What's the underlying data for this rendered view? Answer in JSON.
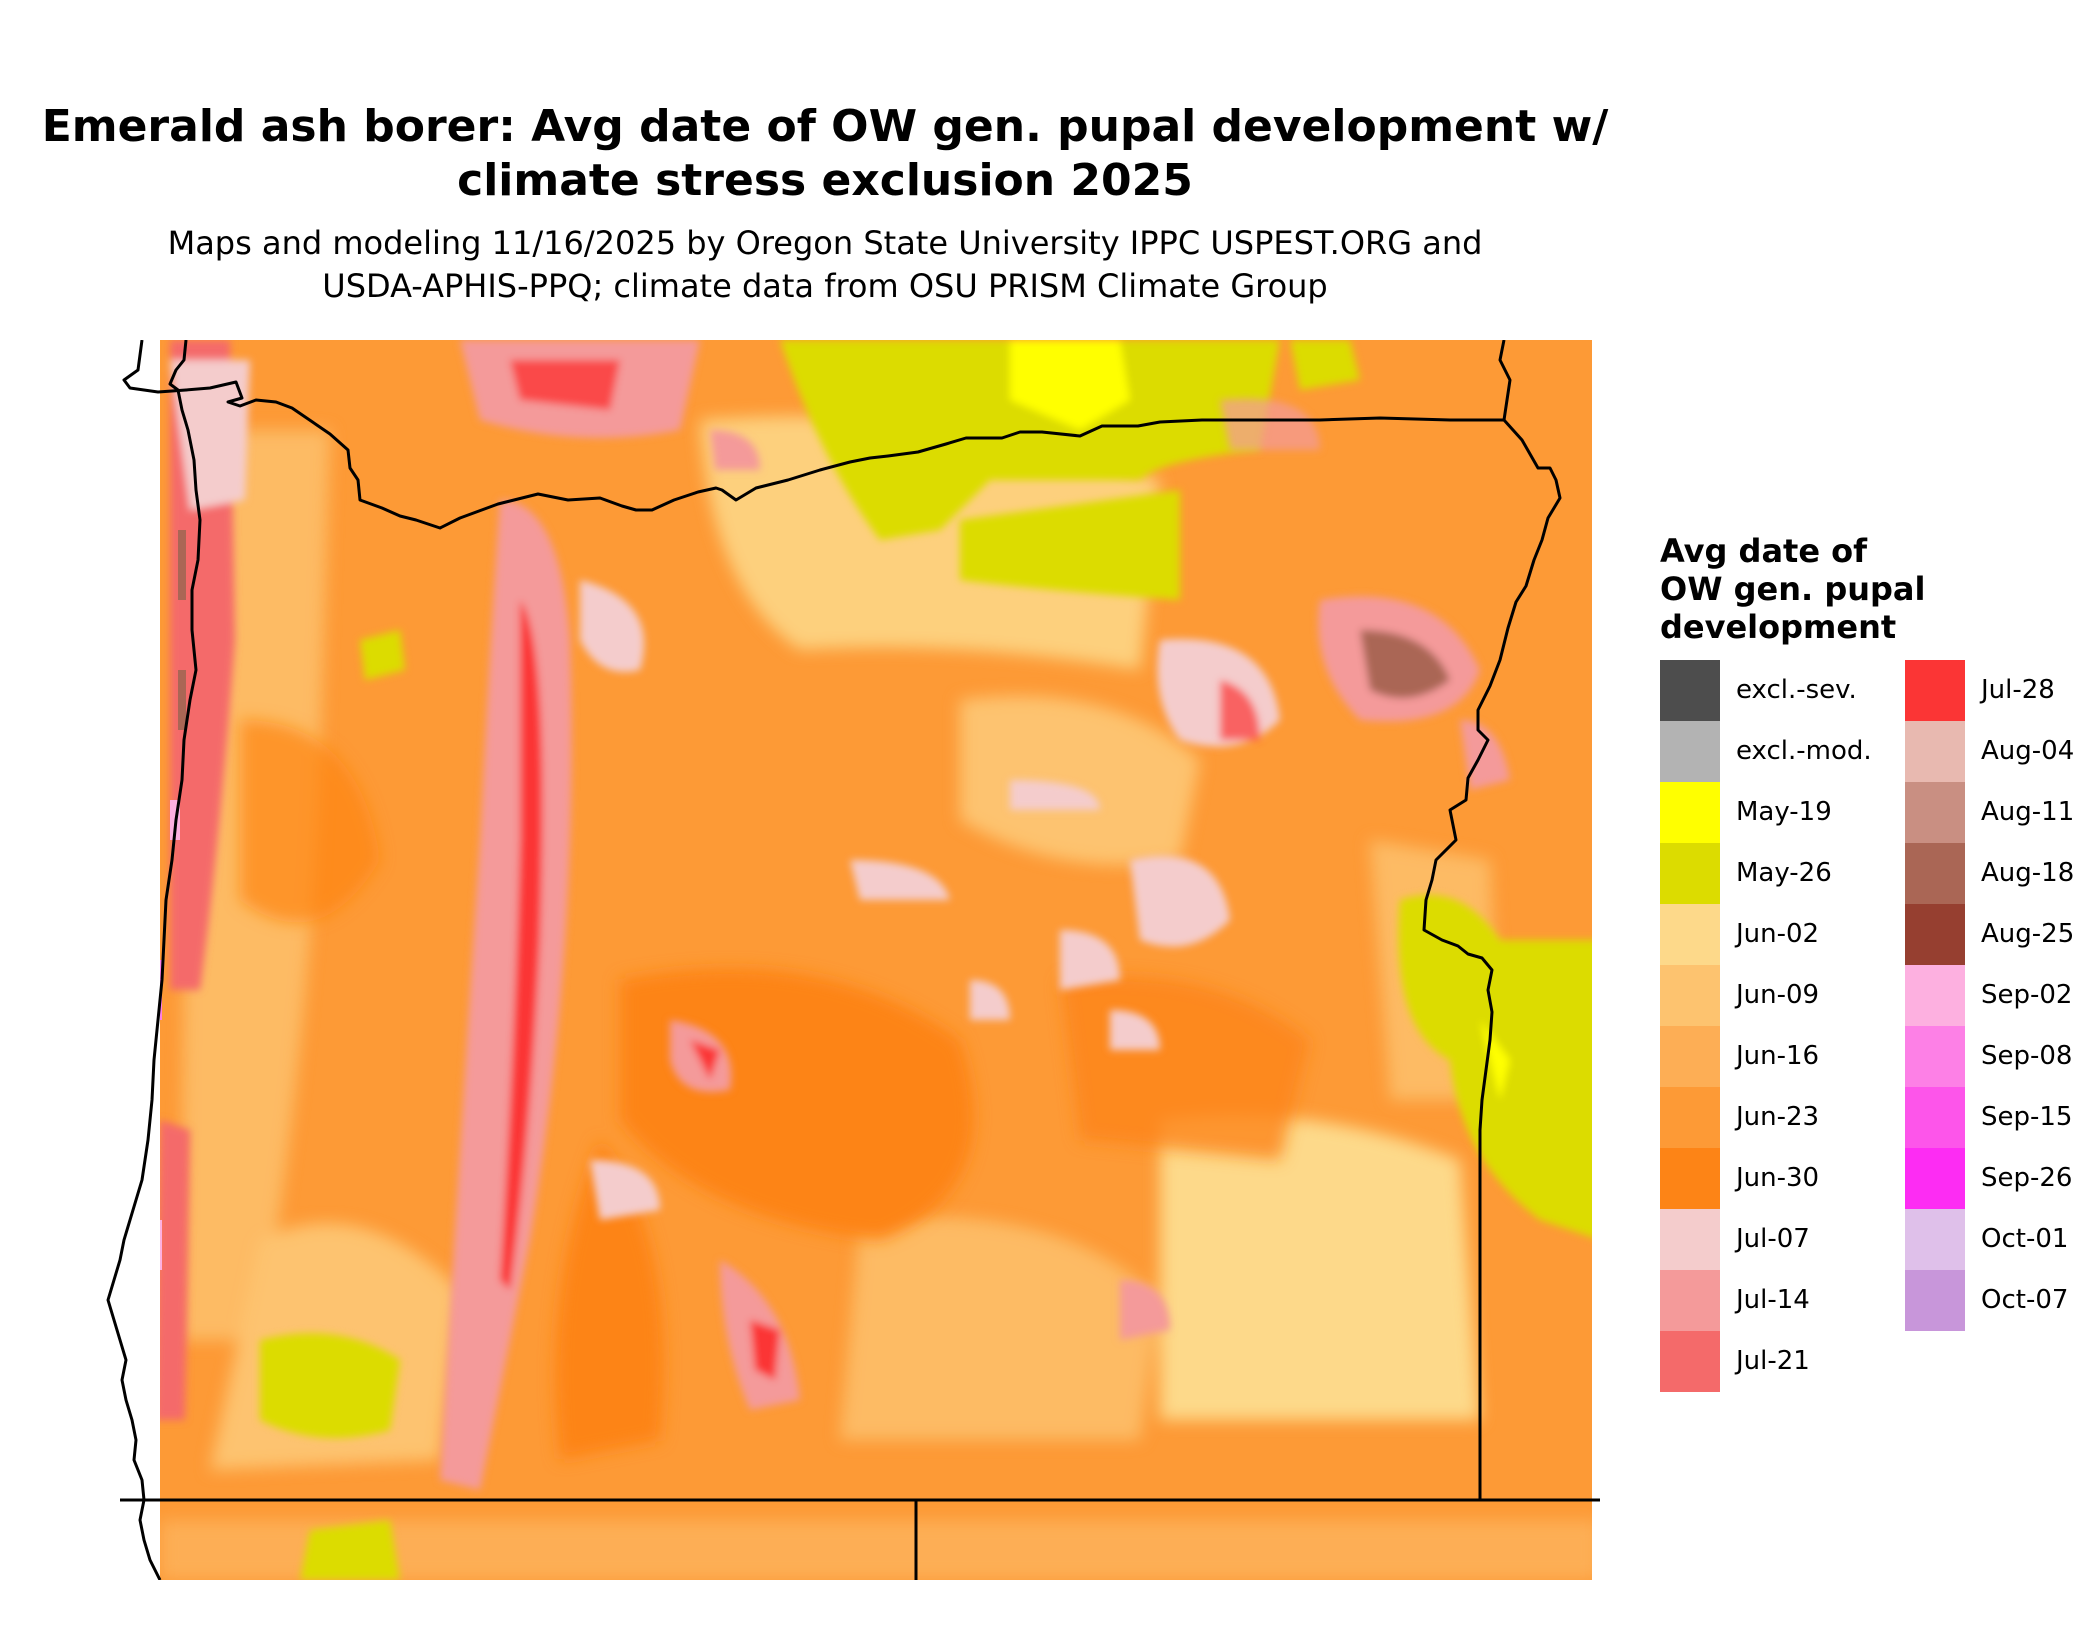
{
  "title_line1": "Emerald ash borer: Avg date of OW gen. pupal development w/",
  "title_line2": "climate stress exclusion 2025",
  "subtitle_line1": "Maps and modeling 11/16/2025 by Oregon State University IPPC USPEST.ORG and",
  "subtitle_line2": "USDA-APHIS-PPQ; climate data from OSU PRISM Climate Group",
  "legend": {
    "title_line1": "Avg date of",
    "title_line2": "OW gen. pupal",
    "title_line3": "development",
    "column1": [
      {
        "label": "excl.-sev.",
        "color": "#4d4d4d"
      },
      {
        "label": "excl.-mod.",
        "color": "#b3b3b3"
      },
      {
        "label": "May-19",
        "color": "#ffff00"
      },
      {
        "label": "May-26",
        "color": "#dcdc00"
      },
      {
        "label": "Jun-02",
        "color": "#fdd98a"
      },
      {
        "label": "Jun-09",
        "color": "#fdc36f"
      },
      {
        "label": "Jun-16",
        "color": "#fdae55"
      },
      {
        "label": "Jun-23",
        "color": "#fd9a36"
      },
      {
        "label": "Jun-30",
        "color": "#fd8416"
      },
      {
        "label": "Jul-07",
        "color": "#f4cccc"
      },
      {
        "label": "Jul-14",
        "color": "#f49a9a"
      },
      {
        "label": "Jul-21",
        "color": "#f46a6a"
      }
    ],
    "column2": [
      {
        "label": "Jul-28",
        "color": "#fb3535"
      },
      {
        "label": "Aug-04",
        "color": "#e8b9b0"
      },
      {
        "label": "Aug-11",
        "color": "#c98f82"
      },
      {
        "label": "Aug-18",
        "color": "#aa6655"
      },
      {
        "label": "Aug-25",
        "color": "#963f30"
      },
      {
        "label": "Sep-02",
        "color": "#fdb0e0"
      },
      {
        "label": "Sep-08",
        "color": "#fd80e6"
      },
      {
        "label": "Sep-15",
        "color": "#fd55ea"
      },
      {
        "label": "Sep-26",
        "color": "#fd2cf3"
      },
      {
        "label": "Oct-01",
        "color": "#dfc0ea"
      },
      {
        "label": "Oct-07",
        "color": "#c896da"
      }
    ]
  },
  "map": {
    "region": "Oregon",
    "base_color": "#fd9a36",
    "boundary_color": "#000000"
  }
}
